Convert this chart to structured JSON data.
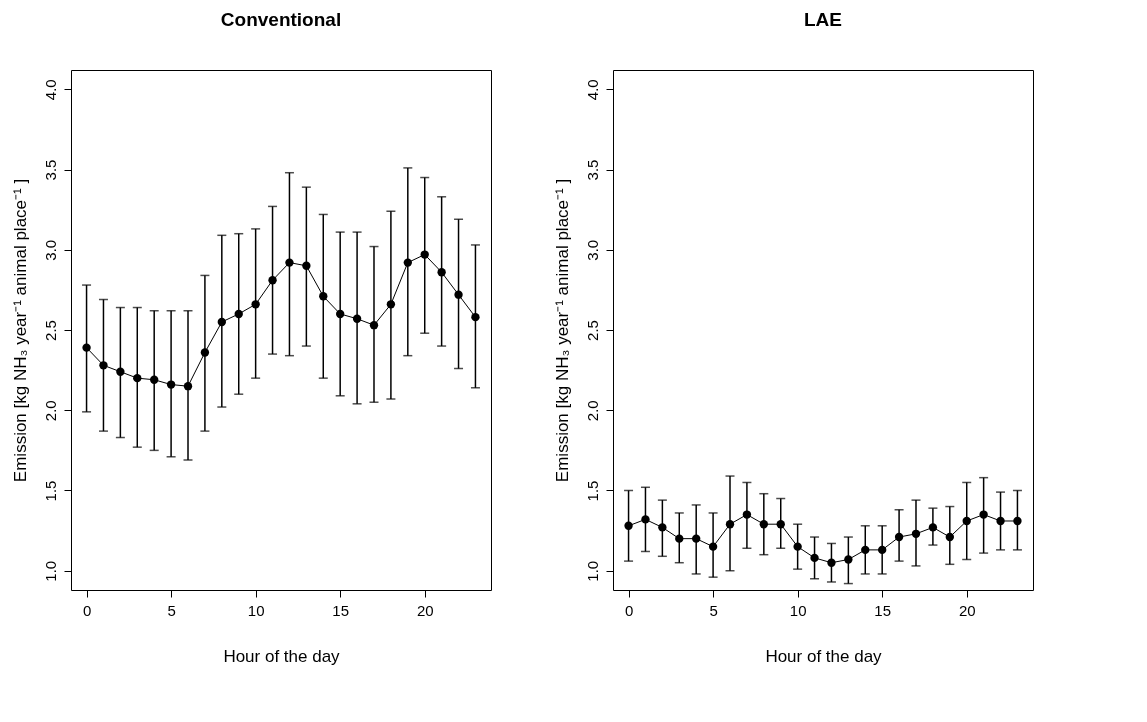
{
  "chart_data": [
    {
      "type": "line",
      "title": "Conventional",
      "xlabel": "Hour of the day",
      "ylabel": "Emission [kg NH₃ year⁻¹ animal place⁻¹ ]",
      "x": [
        0,
        1,
        2,
        3,
        4,
        5,
        6,
        7,
        8,
        9,
        10,
        11,
        12,
        13,
        14,
        15,
        16,
        17,
        18,
        19,
        20,
        21,
        22,
        23
      ],
      "series": [
        {
          "color": "#000000",
          "values": [
            2.39,
            2.28,
            2.24,
            2.2,
            2.19,
            2.16,
            2.15,
            2.36,
            2.55,
            2.6,
            2.66,
            2.81,
            2.92,
            2.9,
            2.71,
            2.6,
            2.57,
            2.53,
            2.66,
            2.92,
            2.97,
            2.86,
            2.72,
            2.58
          ],
          "errors": [
            [
              1.99,
              2.78
            ],
            [
              1.87,
              2.69
            ],
            [
              1.83,
              2.64
            ],
            [
              1.77,
              2.64
            ],
            [
              1.75,
              2.62
            ],
            [
              1.71,
              2.62
            ],
            [
              1.69,
              2.62
            ],
            [
              1.87,
              2.84
            ],
            [
              2.02,
              3.09
            ],
            [
              2.1,
              3.1
            ],
            [
              2.2,
              3.13
            ],
            [
              2.35,
              3.27
            ],
            [
              2.34,
              3.48
            ],
            [
              2.4,
              3.39
            ],
            [
              2.2,
              3.22
            ],
            [
              2.09,
              3.11
            ],
            [
              2.04,
              3.11
            ],
            [
              2.05,
              3.02
            ],
            [
              2.07,
              3.24
            ],
            [
              2.34,
              3.51
            ],
            [
              2.48,
              3.45
            ],
            [
              2.4,
              3.33
            ],
            [
              2.26,
              3.19
            ],
            [
              2.14,
              3.03
            ]
          ]
        }
      ],
      "xlim": [
        -0.92,
        23.92
      ],
      "xticks": [
        0,
        5,
        10,
        15,
        20
      ],
      "ylim": [
        0.88,
        4.12
      ],
      "yticks": [
        {
          "value": 1,
          "label": "1.0"
        },
        {
          "value": 1.5,
          "label": "1.5"
        },
        {
          "value": 2,
          "label": "2.0"
        },
        {
          "value": 2.5,
          "label": "2.5"
        },
        {
          "value": 3,
          "label": "3.0"
        },
        {
          "value": 3.5,
          "label": "3.5"
        },
        {
          "value": 4,
          "label": "4.0"
        }
      ],
      "grid": false,
      "marker": "circle",
      "line_style": "solid"
    },
    {
      "type": "line",
      "title": "LAE",
      "xlabel": "Hour of the day",
      "ylabel": "Emission [kg NH₃ year⁻¹ animal place⁻¹ ]",
      "x": [
        0,
        1,
        2,
        3,
        4,
        5,
        6,
        7,
        8,
        9,
        10,
        11,
        12,
        13,
        14,
        15,
        16,
        17,
        18,
        19,
        20,
        21,
        22,
        23
      ],
      "series": [
        {
          "color": "#000000",
          "values": [
            1.28,
            1.32,
            1.27,
            1.2,
            1.2,
            1.15,
            1.29,
            1.35,
            1.29,
            1.29,
            1.15,
            1.08,
            1.05,
            1.07,
            1.13,
            1.13,
            1.21,
            1.23,
            1.27,
            1.21,
            1.31,
            1.35,
            1.31,
            1.31
          ],
          "errors": [
            [
              1.06,
              1.5
            ],
            [
              1.12,
              1.52
            ],
            [
              1.09,
              1.44
            ],
            [
              1.05,
              1.36
            ],
            [
              0.98,
              1.41
            ],
            [
              0.96,
              1.36
            ],
            [
              1.0,
              1.59
            ],
            [
              1.14,
              1.55
            ],
            [
              1.1,
              1.48
            ],
            [
              1.14,
              1.45
            ],
            [
              1.01,
              1.29
            ],
            [
              0.95,
              1.21
            ],
            [
              0.93,
              1.17
            ],
            [
              0.92,
              1.21
            ],
            [
              0.98,
              1.28
            ],
            [
              0.98,
              1.28
            ],
            [
              1.06,
              1.38
            ],
            [
              1.03,
              1.44
            ],
            [
              1.16,
              1.39
            ],
            [
              1.04,
              1.4
            ],
            [
              1.07,
              1.55
            ],
            [
              1.11,
              1.58
            ],
            [
              1.13,
              1.49
            ],
            [
              1.13,
              1.5
            ]
          ]
        }
      ],
      "xlim": [
        -0.92,
        23.92
      ],
      "xticks": [
        0,
        5,
        10,
        15,
        20
      ],
      "ylim": [
        0.88,
        4.12
      ],
      "yticks": [
        {
          "value": 1,
          "label": "1.0"
        },
        {
          "value": 1.5,
          "label": "1.5"
        },
        {
          "value": 2,
          "label": "2.0"
        },
        {
          "value": 2.5,
          "label": "2.5"
        },
        {
          "value": 3,
          "label": "3.0"
        },
        {
          "value": 3.5,
          "label": "3.5"
        },
        {
          "value": 4,
          "label": "4.0"
        }
      ],
      "grid": false,
      "marker": "circle",
      "line_style": "solid"
    }
  ]
}
